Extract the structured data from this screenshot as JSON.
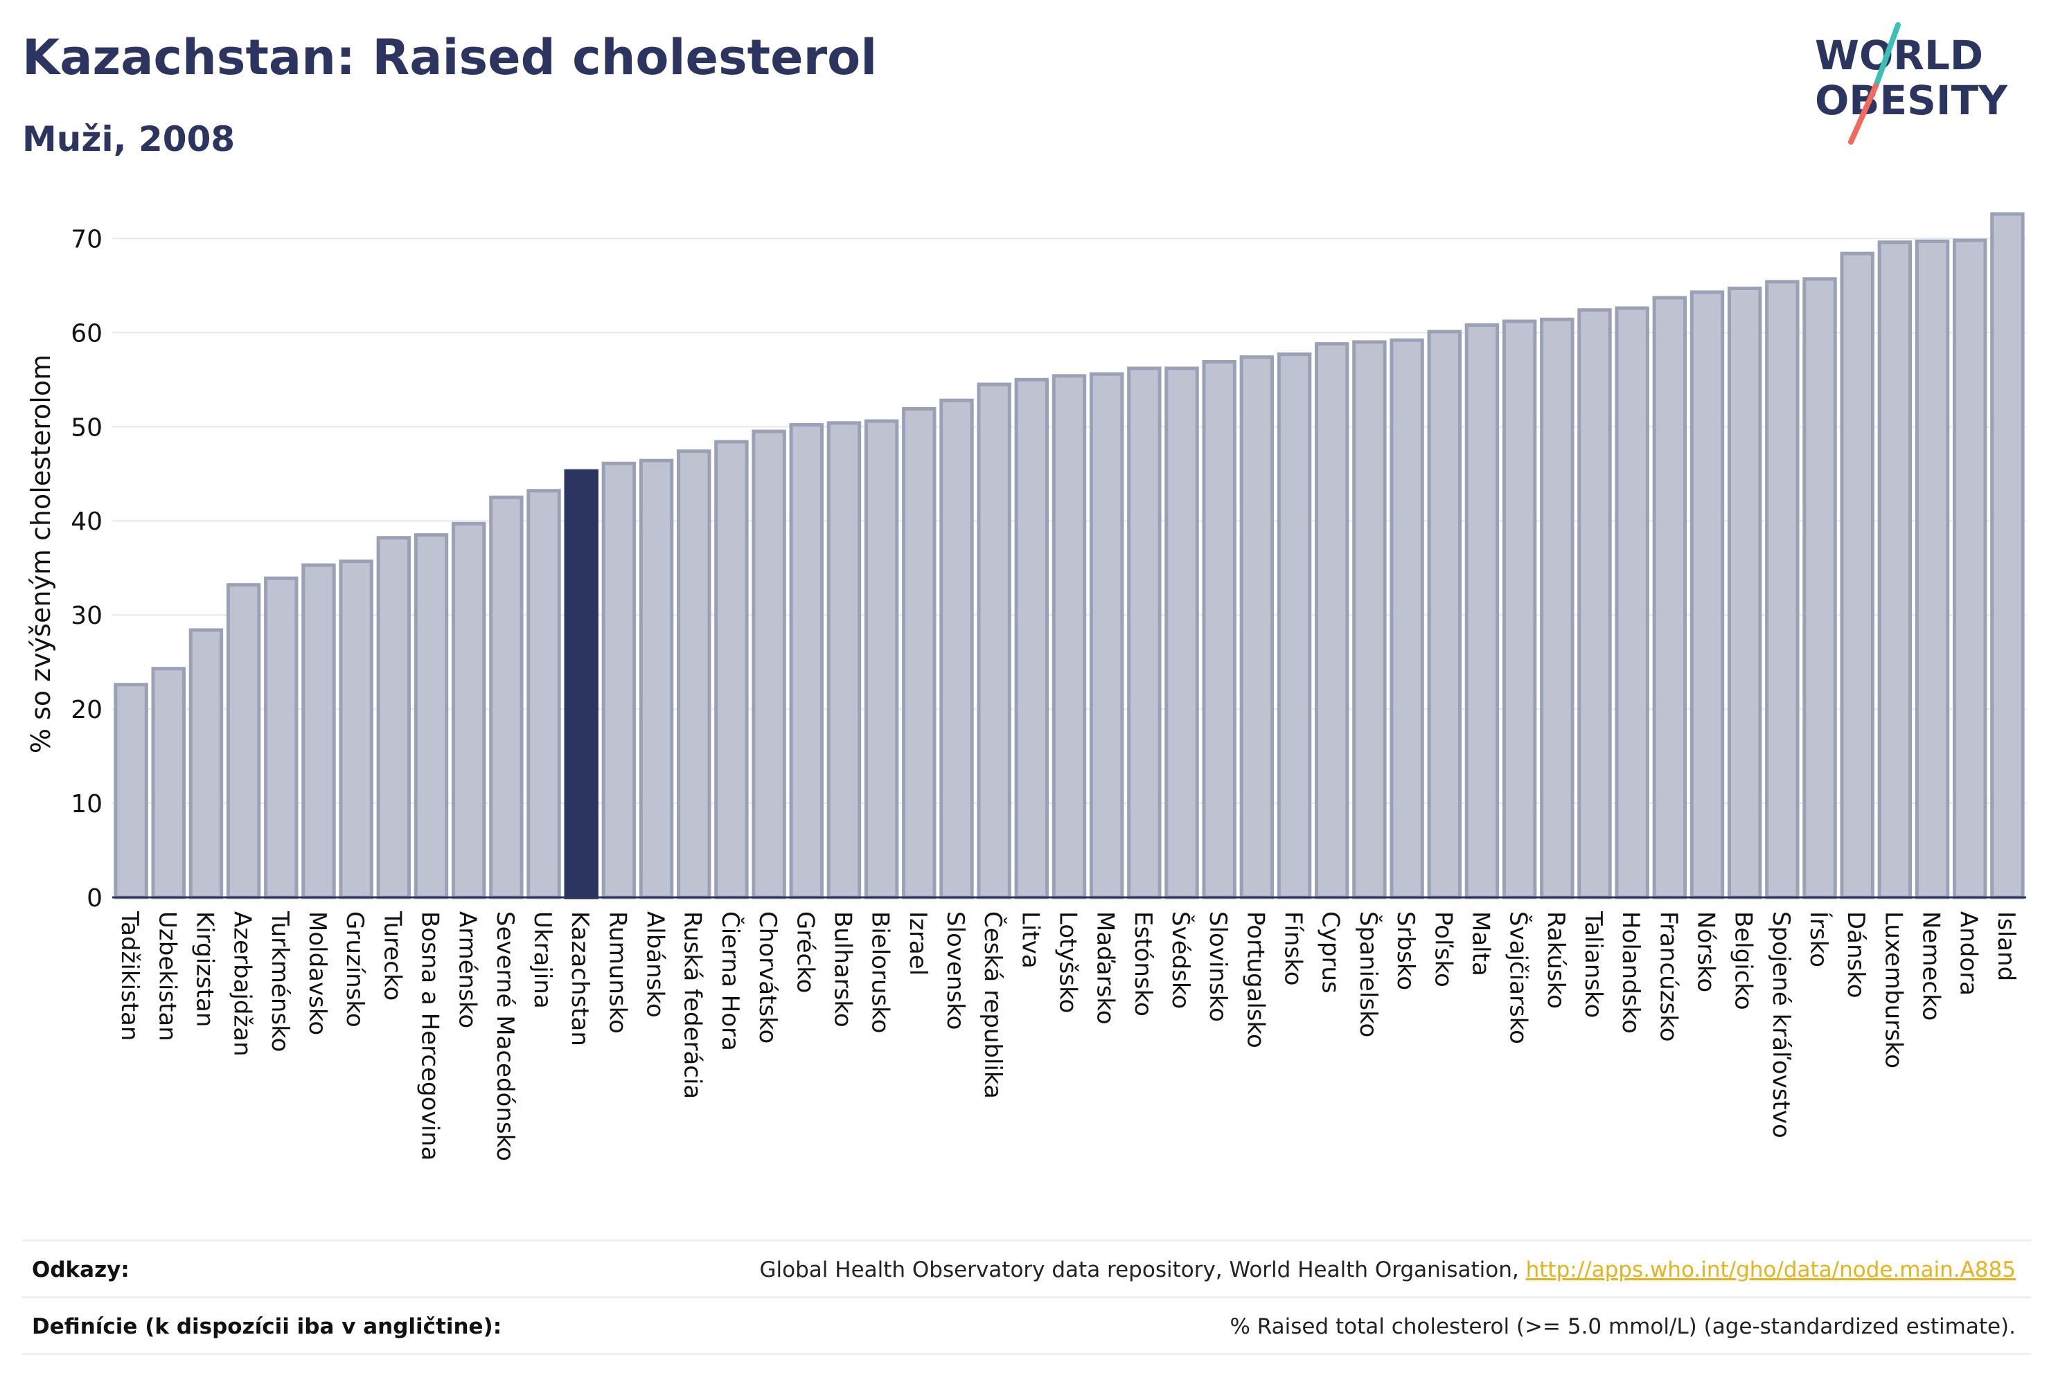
{
  "header": {
    "title": "Kazachstan: Raised cholesterol",
    "subtitle": "Muži, 2008"
  },
  "logo": {
    "line1": "WORLD",
    "line2": "OBESITY",
    "name": "world-obesity-logo"
  },
  "colors": {
    "highlight": "#2b3560",
    "bar_fill": "#bfc3d1",
    "bar_stroke": "#9aa0b6",
    "grid": "#e6e8ee",
    "axis": "#2b3560",
    "logo_accent_teal": "#3cbfb4",
    "logo_accent_coral": "#f06b5b",
    "link": "#e8b21b"
  },
  "chart_data": {
    "type": "bar",
    "ylabel": "% so zvýšeným cholesterolom",
    "ylim": [
      0,
      74
    ],
    "yticks": [
      0,
      10,
      20,
      30,
      40,
      50,
      60,
      70
    ],
    "grid": true,
    "highlight": "Kazachstan",
    "categories": [
      "Tadžikistan",
      "Uzbekistan",
      "Kirgizstan",
      "Azerbajdžan",
      "Turkménsko",
      "Moldavsko",
      "Gruzínsko",
      "Turecko",
      "Bosna a Hercegovina",
      "Arménsko",
      "Severné Macedónsko",
      "Ukrajina",
      "Kazachstan",
      "Rumunsko",
      "Albánsko",
      "Ruská federácia",
      "Čierna Hora",
      "Chorvátsko",
      "Grécko",
      "Bulharsko",
      "Bielorusko",
      "Izrael",
      "Slovensko",
      "Česká republika",
      "Litva",
      "Lotyšsko",
      "Maďarsko",
      "Estónsko",
      "Švédsko",
      "Slovinsko",
      "Portugalsko",
      "Fínsko",
      "Cyprus",
      "Španielsko",
      "Srbsko",
      "Poľsko",
      "Malta",
      "Švajčiarsko",
      "Rakúsko",
      "Taliansko",
      "Holandsko",
      "Francúzsko",
      "Nórsko",
      "Belgicko",
      "Spojené kráľovstvo",
      "Írsko",
      "Dánsko",
      "Luxembursko",
      "Nemecko",
      "Andora",
      "Island"
    ],
    "values": [
      22.6,
      24.3,
      28.4,
      33.2,
      33.9,
      35.3,
      35.7,
      38.2,
      38.5,
      39.7,
      42.5,
      43.2,
      45.3,
      46.1,
      46.4,
      47.4,
      48.4,
      49.5,
      50.2,
      50.4,
      50.6,
      51.9,
      52.8,
      54.5,
      55.0,
      55.4,
      55.6,
      56.2,
      56.2,
      56.9,
      57.4,
      57.7,
      58.8,
      59.0,
      59.2,
      60.1,
      60.8,
      61.2,
      61.4,
      62.4,
      62.6,
      63.7,
      64.3,
      64.7,
      65.4,
      65.7,
      68.4,
      69.6,
      69.7,
      69.8,
      72.6
    ]
  },
  "footer": {
    "refs_label": "Odkazy:",
    "refs_text": "Global Health Observatory data repository, World Health Organisation, ",
    "refs_link": "http://apps.who.int/gho/data/node.main.A885",
    "defs_label": "Definície (k dispozícii iba v angličtine):",
    "defs_text": "% Raised total cholesterol (>= 5.0 mmol/L) (age-standardized estimate)."
  }
}
